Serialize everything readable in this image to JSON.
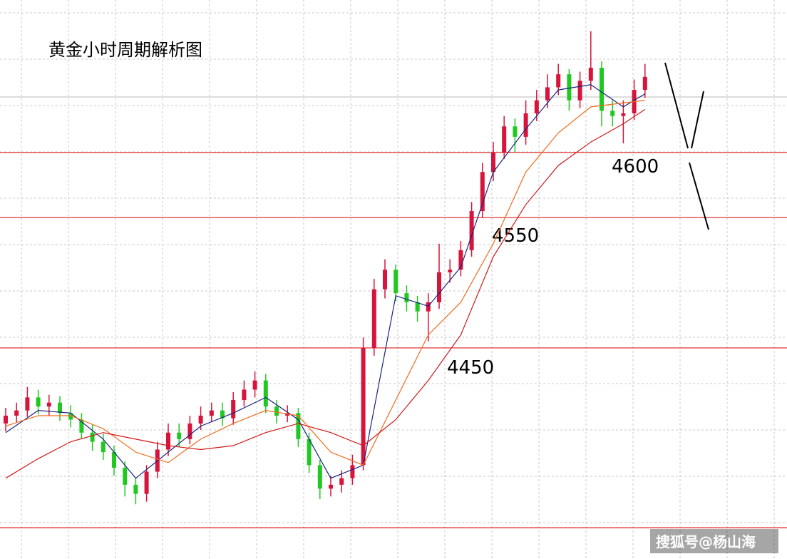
{
  "chart_data": {
    "type": "candlestick",
    "title": "黄金小时周期解析图",
    "watermark": "搜狐号@杨山海",
    "ylim": [
      4288,
      4717
    ],
    "grid": true,
    "up_color": "#d6143c",
    "down_color": "#22c822",
    "open": [
      4392,
      4398,
      4402,
      4412,
      4405,
      4408,
      4400,
      4395,
      4385,
      4378,
      4370,
      4358,
      4345,
      4338,
      4355,
      4372,
      4385,
      4380,
      4392,
      4398,
      4402,
      4396,
      4410,
      4418,
      4425,
      4405,
      4398,
      4400,
      4380,
      4360,
      4342,
      4345,
      4350,
      4360,
      4450,
      4495,
      4510,
      4492,
      4485,
      4478,
      4485,
      4508,
      4510,
      4525,
      4555,
      4585,
      4600,
      4620,
      4612,
      4630,
      4640,
      4650,
      4660,
      4640,
      4655,
      4665,
      4632,
      4628,
      4630,
      4648
    ],
    "high": [
      4404,
      4408,
      4420,
      4418,
      4414,
      4413,
      4406,
      4400,
      4391,
      4384,
      4375,
      4363,
      4350,
      4360,
      4378,
      4392,
      4392,
      4398,
      4405,
      4408,
      4408,
      4416,
      4425,
      4432,
      4430,
      4410,
      4406,
      4404,
      4385,
      4364,
      4352,
      4356,
      4368,
      4458,
      4503,
      4518,
      4514,
      4498,
      4490,
      4492,
      4530,
      4518,
      4532,
      4562,
      4592,
      4608,
      4628,
      4626,
      4640,
      4648,
      4660,
      4668,
      4664,
      4662,
      4693,
      4670,
      4640,
      4640,
      4656,
      4668
    ],
    "low": [
      4386,
      4393,
      4397,
      4399,
      4398,
      4394,
      4389,
      4380,
      4371,
      4364,
      4352,
      4336,
      4330,
      4332,
      4350,
      4367,
      4374,
      4376,
      4387,
      4393,
      4390,
      4391,
      4405,
      4412,
      4400,
      4392,
      4393,
      4374,
      4354,
      4334,
      4336,
      4339,
      4345,
      4356,
      4444,
      4488,
      4486,
      4478,
      4470,
      4455,
      4480,
      4500,
      4505,
      4520,
      4550,
      4578,
      4595,
      4600,
      4606,
      4624,
      4634,
      4644,
      4632,
      4634,
      4648,
      4620,
      4620,
      4607,
      4625,
      4642
    ],
    "close": [
      4398,
      4402,
      4412,
      4405,
      4408,
      4400,
      4395,
      4385,
      4378,
      4370,
      4358,
      4345,
      4338,
      4355,
      4372,
      4385,
      4380,
      4392,
      4398,
      4402,
      4396,
      4410,
      4418,
      4425,
      4405,
      4398,
      4400,
      4380,
      4360,
      4342,
      4345,
      4350,
      4360,
      4450,
      4495,
      4510,
      4492,
      4485,
      4478,
      4485,
      4508,
      4510,
      4525,
      4555,
      4585,
      4600,
      4620,
      4612,
      4630,
      4640,
      4650,
      4660,
      4640,
      4655,
      4665,
      4632,
      4628,
      4630,
      4648,
      4658
    ],
    "series": [
      {
        "color": "#1a237e",
        "x": [
          0,
          3,
          6,
          9,
          12,
          15,
          18,
          21,
          24,
          27,
          30,
          33,
          36,
          39,
          42,
          45,
          48,
          51,
          54,
          57,
          59
        ],
        "values": [
          4385,
          4402,
          4400,
          4380,
          4350,
          4370,
          4390,
          4400,
          4412,
          4395,
          4350,
          4360,
          4490,
          4482,
          4512,
          4585,
          4618,
          4648,
          4652,
          4635,
          4645
        ]
      },
      {
        "color": "#f26b1d",
        "x": [
          0,
          3,
          6,
          9,
          12,
          15,
          18,
          21,
          24,
          27,
          30,
          33,
          36,
          39,
          42,
          45,
          48,
          51,
          54,
          57,
          59
        ],
        "values": [
          4390,
          4398,
          4398,
          4388,
          4370,
          4362,
          4380,
          4392,
          4402,
          4398,
          4370,
          4360,
          4410,
          4460,
          4485,
          4530,
          4585,
          4615,
          4635,
          4638,
          4640
        ]
      },
      {
        "color": "#d01818",
        "x": [
          0,
          3,
          6,
          9,
          12,
          15,
          18,
          21,
          24,
          27,
          30,
          33,
          36,
          39,
          42,
          45,
          48,
          51,
          54,
          57,
          59
        ],
        "values": [
          4350,
          4365,
          4378,
          4385,
          4380,
          4375,
          4372,
          4375,
          4385,
          4392,
          4385,
          4375,
          4395,
          4425,
          4460,
          4520,
          4560,
          4590,
          4608,
          4622,
          4633
        ]
      }
    ],
    "levels": [
      {
        "value": 4600,
        "label": "4600"
      },
      {
        "value": 4550,
        "label": "4550"
      },
      {
        "value": 4450,
        "label": "4450"
      },
      {
        "value": 4312
      }
    ]
  }
}
